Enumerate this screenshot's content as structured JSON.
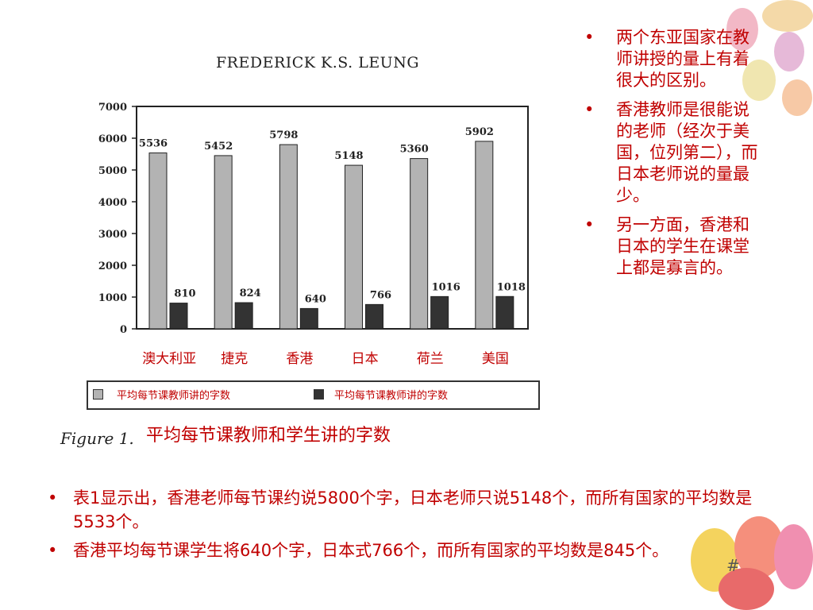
{
  "header_text": "FREDERICK K.S. LEUNG",
  "figure_label": "Figure 1.",
  "figure_caption": "平均每节课教师和学生讲的字数",
  "legend": {
    "items": [
      {
        "label": "平均每节课教师讲的字数",
        "color": "#b3b3b3"
      },
      {
        "label": "平均每节课教师讲的字数",
        "color": "#333333"
      }
    ]
  },
  "chart_data": {
    "type": "bar",
    "categories": [
      "澳大利亚",
      "捷克",
      "香港",
      "日本",
      "荷兰",
      "美国"
    ],
    "series": [
      {
        "name": "平均每节课教师讲的字数",
        "values": [
          5536,
          5452,
          5798,
          5148,
          5360,
          5902
        ],
        "color": "#b3b3b3"
      },
      {
        "name": "平均每节课教师讲的字数",
        "values": [
          810,
          824,
          640,
          766,
          1016,
          1018
        ],
        "color": "#333333"
      }
    ],
    "ylim": [
      0,
      7000
    ],
    "yticks": [
      "0",
      "1000",
      "2000",
      "3000",
      "4000",
      "5000",
      "6000",
      "7000"
    ],
    "grid": false,
    "legend_position": "bottom"
  },
  "side_bullets": [
    "两个东亚国家在教师讲授的量上有着很大的区别。",
    "香港教师是很能说的老师（经次于美国，位列第二），而日本老师说的量最少。",
    "另一方面，香港和日本的学生在课堂上都是寡言的。"
  ],
  "bottom_bullets": [
    "表1显示出，香港老师每节课约说5800个字，日本老师只说5148个，而所有国家的平均数是5533个。",
    "香港平均每节课学生将640个字，日本式766个，而所有国家的平均数是845个。"
  ],
  "bullet_symbol": "•",
  "page_number": "#"
}
